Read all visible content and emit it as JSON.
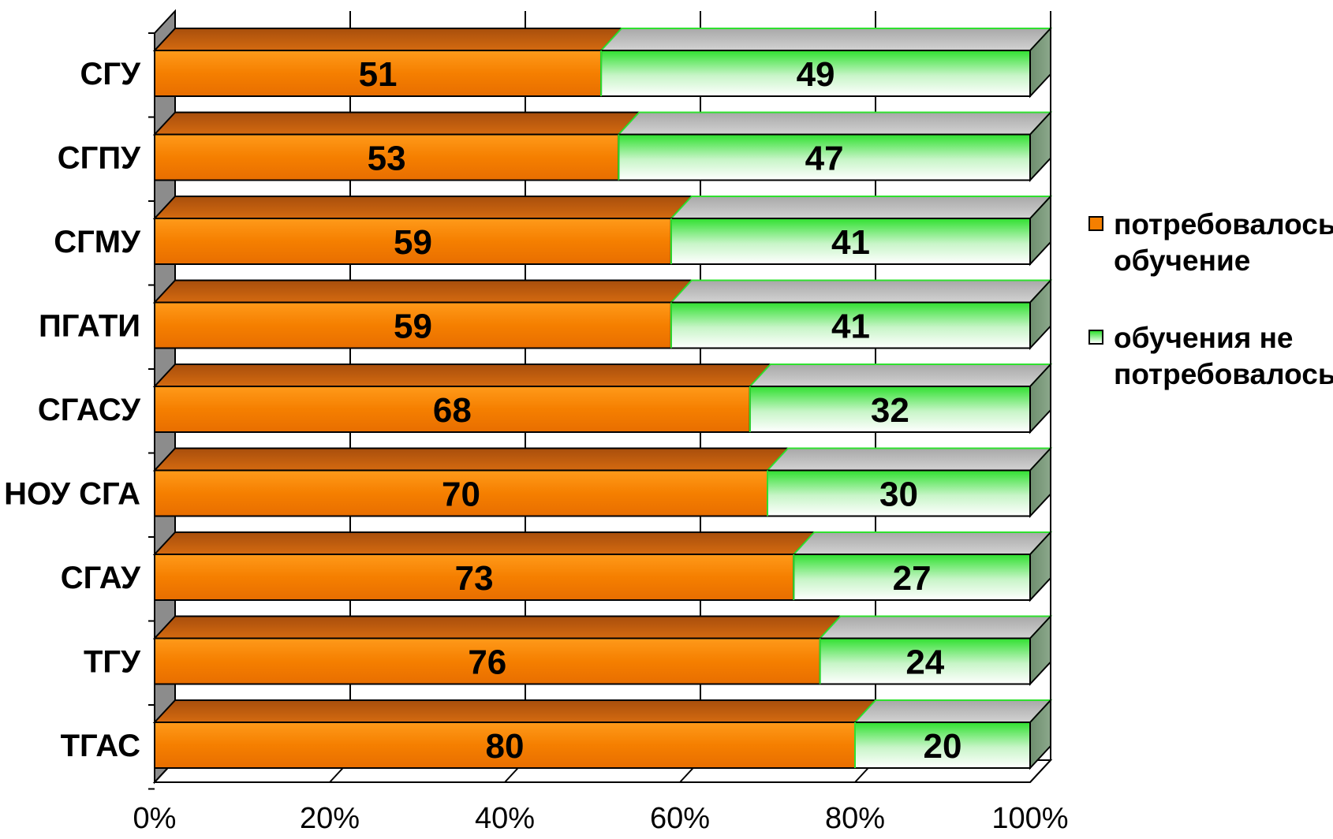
{
  "chart_data": {
    "type": "bar",
    "orientation": "horizontal",
    "stacked": "percent",
    "categories": [
      "СГУ",
      "СГПУ",
      "СГМУ",
      "ПГАТИ",
      "СГАСУ",
      "НОУ СГА",
      "СГАУ",
      "ТГУ",
      "ТГАС"
    ],
    "series": [
      {
        "name": "потребовалось обучение",
        "values": [
          51,
          53,
          59,
          59,
          68,
          70,
          73,
          76,
          80
        ],
        "color": "#f57f00"
      },
      {
        "name": "обучения не потребовалось",
        "values": [
          49,
          47,
          41,
          41,
          32,
          30,
          27,
          24,
          20
        ],
        "color": "#2fe02f"
      }
    ],
    "xlim": [
      0,
      100
    ],
    "x_ticks": [
      "0%",
      "20%",
      "40%",
      "60%",
      "80%",
      "100%"
    ],
    "grid": "vertical",
    "legend_position": "right",
    "data_labels": true,
    "style": "3d"
  }
}
